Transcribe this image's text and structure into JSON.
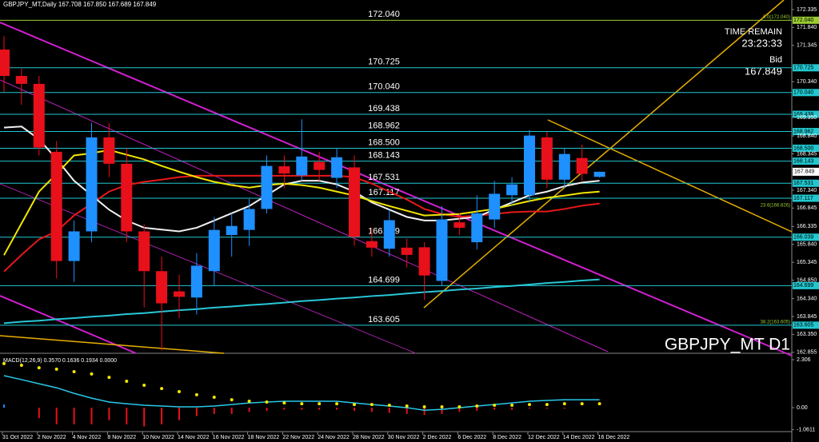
{
  "chart_data": {
    "type": "candlestick",
    "header": "GBPJPY_MT,Daily  167.708 167.850 167.689 167.849",
    "symbol_label": "GBPJPY_MT D1",
    "time_remain_label": "TIME REMAIN",
    "time_remain": "23:23:33",
    "bid_label": "Bid",
    "bid": "167.849",
    "categories": [
      "31 Oct 2022",
      null,
      "2 Nov 2022",
      null,
      "4 Nov 2022",
      null,
      "8 Nov 2022",
      null,
      "10 Nov 2022",
      null,
      "14 Nov 2022",
      null,
      "16 Nov 2022",
      null,
      "18 Nov 2022",
      null,
      "22 Nov 2022",
      null,
      "24 Nov 2022",
      null,
      "28 Nov 2022",
      null,
      "30 Nov 2022",
      null,
      "2 Dec 2022",
      null,
      "6 Dec 2022",
      null,
      "8 Dec 2022",
      null,
      "12 Dec 2022",
      null,
      "14 Dec 2022",
      null,
      "16 Dec 2022"
    ],
    "open": [
      171.23,
      170.5,
      170.28,
      168.4,
      165.38,
      166.2,
      168.8,
      168.07,
      166.2,
      165.1,
      164.54,
      164.37,
      165.1,
      166.1,
      166.24,
      166.82,
      168.0,
      167.75,
      168.12,
      167.68,
      167.97,
      165.93,
      165.72,
      165.75,
      165.76,
      164.83,
      166.45,
      165.9,
      166.53,
      167.2,
      167.2,
      168.8,
      167.63,
      168.23,
      167.708
    ],
    "high": [
      171.6,
      170.7,
      170.5,
      168.7,
      166.5,
      169.2,
      169.2,
      168.5,
      166.4,
      165.5,
      165.0,
      165.6,
      166.6,
      166.7,
      167.1,
      168.3,
      168.3,
      169.3,
      168.4,
      168.5,
      168.3,
      166.3,
      166.8,
      166.0,
      165.9,
      166.9,
      166.7,
      167.2,
      167.6,
      167.7,
      169.0,
      168.95,
      168.5,
      168.6,
      167.85
    ],
    "low": [
      170.06,
      169.7,
      168.3,
      164.9,
      164.8,
      165.9,
      167.7,
      165.9,
      164.1,
      162.9,
      163.8,
      163.9,
      164.7,
      165.5,
      165.8,
      166.7,
      167.4,
      167.6,
      167.6,
      167.4,
      165.8,
      165.5,
      165.5,
      165.2,
      164.3,
      164.7,
      166.1,
      165.7,
      166.3,
      166.9,
      167.0,
      167.4,
      167.4,
      167.6,
      167.689
    ],
    "close": [
      170.5,
      170.28,
      168.52,
      165.38,
      166.2,
      168.8,
      168.07,
      166.2,
      165.1,
      164.21,
      164.39,
      165.25,
      166.24,
      166.35,
      166.82,
      168.01,
      167.8,
      168.27,
      167.9,
      168.25,
      166.05,
      165.75,
      166.51,
      165.55,
      164.98,
      166.53,
      166.3,
      166.7,
      167.24,
      167.5,
      168.85,
      167.63,
      168.34,
      167.79,
      167.849
    ],
    "up_color": "#1e90ff",
    "down_color": "#e8101a",
    "series": [
      {
        "color": "#e81818",
        "values": [
          165.09,
          165.55,
          165.98,
          166.2,
          166.64,
          166.97,
          167.3,
          167.48,
          167.57,
          167.63,
          167.7,
          167.74,
          167.74,
          167.74,
          167.74,
          167.74,
          167.74,
          167.74,
          167.74,
          167.74,
          167.7,
          167.52,
          167.3,
          167.08,
          166.82,
          166.68,
          166.6,
          166.64,
          166.68,
          166.73,
          166.75,
          166.75,
          166.82,
          166.91,
          166.97
        ]
      },
      {
        "color": "#f0f0f0",
        "values": [
          169.07,
          169.1,
          168.75,
          168.2,
          167.6,
          167.2,
          166.8,
          166.5,
          166.3,
          166.25,
          166.2,
          166.3,
          166.5,
          166.7,
          166.9,
          167.2,
          167.5,
          167.6,
          167.6,
          167.5,
          167.3,
          167.0,
          166.8,
          166.6,
          166.5,
          166.5,
          166.55,
          166.6,
          166.8,
          167.0,
          167.2,
          167.3,
          167.45,
          167.55,
          167.6
        ]
      },
      {
        "color": "#f2e600",
        "values": [
          165.54,
          166.42,
          167.3,
          167.79,
          168.3,
          168.36,
          168.45,
          168.32,
          168.19,
          168.01,
          167.85,
          167.7,
          167.57,
          167.48,
          167.41,
          167.48,
          167.52,
          167.48,
          167.41,
          167.3,
          167.19,
          167.04,
          166.9,
          166.77,
          166.64,
          166.66,
          166.68,
          166.75,
          166.82,
          166.93,
          167.04,
          167.13,
          167.19,
          167.26,
          167.3
        ]
      },
      {
        "color": "#28c8d8",
        "values": [
          163.66,
          163.7,
          163.73,
          163.77,
          163.8,
          163.84,
          163.87,
          163.91,
          163.94,
          163.98,
          164.02,
          164.05,
          164.09,
          164.12,
          164.16,
          164.19,
          164.23,
          164.27,
          164.3,
          164.34,
          164.37,
          164.41,
          164.44,
          164.48,
          164.52,
          164.55,
          164.59,
          164.62,
          164.66,
          164.69,
          164.73,
          164.77,
          164.8,
          164.84,
          164.87
        ]
      }
    ],
    "ylim": [
      162.85,
      172.6
    ],
    "yticks": [
      172.335,
      {
        "value": 171.84,
        "label": "171.840"
      },
      171.345,
      {
        "value": 170.34,
        "label": "170.340"
      },
      {
        "value": 169.35,
        "label": "169.350"
      },
      {
        "value": 168.84,
        "label": "168.840"
      },
      168.345,
      {
        "value": 167.34,
        "label": "167.340"
      },
      166.845,
      166.335,
      {
        "value": 165.84,
        "label": "165.840"
      },
      165.345,
      {
        "value": 164.85,
        "label": "164.850"
      },
      {
        "value": 164.34,
        "label": "164.340"
      },
      163.845,
      {
        "value": 163.35,
        "label": "163.350"
      },
      162.855
    ],
    "levels": [
      {
        "value": 172.04,
        "label": "172.040"
      },
      170.725,
      {
        "value": 170.04,
        "label": "170.040"
      },
      169.438,
      168.962,
      {
        "value": 168.5,
        "label": "168.500"
      },
      168.143,
      167.531,
      167.117,
      166.039,
      164.699,
      163.605
    ],
    "level_color": "#20c8d0",
    "top_level_color": "#9acd32",
    "fib": [
      {
        "value": 172.04,
        "label": "0.0(172.040)"
      },
      {
        "value": 166.826,
        "label": "23.6(166.826)"
      },
      {
        "value": 163.605,
        "label": "38.2(163.605)"
      }
    ],
    "macd": {
      "label": "MACD(12,26,9) 0.3570 0.1636 0.1934 0.0000",
      "ylim": [
        -1.15,
        2.5
      ],
      "yticks": [
        2.306,
        {
          "value": 0,
          "label": "0.00"
        },
        -1.0611
      ],
      "histogram": [
        0.15,
        0,
        -0.5,
        -0.8,
        -0.8,
        -0.8,
        -0.6,
        -0.8,
        -0.9,
        -0.8,
        -0.6,
        -0.4,
        -0.3,
        -0.3,
        -0.2,
        -0.15,
        -0.1,
        -0.1,
        -0.1,
        -0.1,
        -0.15,
        -0.2,
        -0.25,
        -0.3,
        -0.35,
        -0.3,
        -0.2,
        -0.15,
        -0.1,
        -0.1,
        -0.05,
        -0.05,
        -0.05,
        0,
        0
      ],
      "line": [
        1.54,
        1.35,
        1.15,
        0.96,
        0.69,
        0.46,
        0.27,
        0.19,
        0.12,
        0.08,
        0.04,
        0.04,
        0.08,
        0.15,
        0.23,
        0.27,
        0.31,
        0.31,
        0.31,
        0.31,
        0.23,
        0.15,
        0.08,
        0,
        -0.12,
        -0.08,
        0,
        0.08,
        0.15,
        0.23,
        0.31,
        0.35,
        0.38,
        0.38,
        0.38
      ],
      "signal": [
        2.12,
        2.04,
        1.92,
        1.85,
        1.73,
        1.62,
        1.46,
        1.27,
        1.08,
        0.92,
        0.77,
        0.62,
        0.5,
        0.38,
        0.31,
        0.27,
        0.23,
        0.19,
        0.19,
        0.19,
        0.15,
        0.15,
        0.12,
        0.08,
        0.04,
        0.04,
        0.04,
        0.08,
        0.12,
        0.12,
        0.15,
        0.15,
        0.19,
        0.19,
        0.19
      ],
      "line_color": "#28c8e8",
      "signal_color": "#f2e600",
      "hist_color": "#e8101a"
    }
  }
}
